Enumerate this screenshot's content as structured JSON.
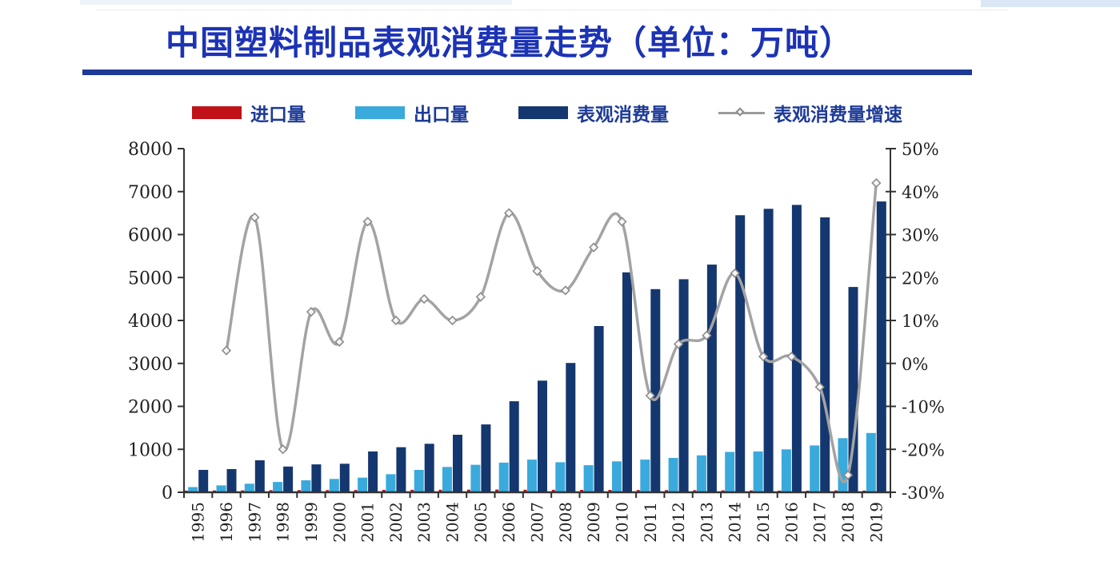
{
  "header": {
    "title": "中国塑料制品表观消费量走势（单位：万吨）",
    "title_color": "#1c33b4",
    "underline_color": "#1d3a96"
  },
  "legend": {
    "text_color": "#1d3a96",
    "items": [
      {
        "label": "进口量",
        "swatch": "bar",
        "color": "#c01218"
      },
      {
        "label": "出口量",
        "swatch": "bar",
        "color": "#3aaadc"
      },
      {
        "label": "表观消费量",
        "swatch": "bar",
        "color": "#15376f"
      },
      {
        "label": "表观消费量增速",
        "swatch": "line",
        "color": "#9c9c9c"
      }
    ]
  },
  "chart_data": {
    "type": "bar",
    "title": "中国塑料制品表观消费量走势（单位：万吨）",
    "xlabel": "",
    "ylabel_left": "万吨",
    "ylabel_right": "%",
    "grid": false,
    "legend_position": "top",
    "categories": [
      "1995",
      "1996",
      "1997",
      "1998",
      "1999",
      "2000",
      "2001",
      "2002",
      "2003",
      "2004",
      "2005",
      "2006",
      "2007",
      "2008",
      "2009",
      "2010",
      "2011",
      "2012",
      "2013",
      "2014",
      "2015",
      "2016",
      "2017",
      "2018",
      "2019"
    ],
    "series": [
      {
        "name": "进口量",
        "type": "bar",
        "axis": "left",
        "color": "#c01218",
        "values": [
          40,
          42,
          45,
          48,
          50,
          50,
          52,
          55,
          58,
          60,
          62,
          63,
          60,
          58,
          55,
          55,
          52,
          50,
          48,
          45,
          42,
          40,
          38,
          42,
          40
        ]
      },
      {
        "name": "出口量",
        "type": "bar",
        "axis": "left",
        "color": "#3aaadc",
        "values": [
          120,
          160,
          200,
          240,
          280,
          310,
          340,
          420,
          520,
          590,
          640,
          690,
          760,
          700,
          630,
          720,
          760,
          800,
          860,
          940,
          950,
          1000,
          1090,
          1260,
          1380
        ]
      },
      {
        "name": "表观消费量",
        "type": "bar",
        "axis": "left",
        "color": "#15376f",
        "values": [
          520,
          540,
          745,
          600,
          650,
          665,
          950,
          1050,
          1130,
          1340,
          1580,
          2120,
          2600,
          3010,
          3870,
          5120,
          4730,
          4960,
          5300,
          6450,
          6600,
          6690,
          6400,
          4780,
          6770
        ]
      },
      {
        "name": "表观消费量增速",
        "type": "line",
        "axis": "right",
        "unit": "%",
        "color": "#a3a3a3",
        "values": [
          null,
          3,
          34,
          -20,
          12,
          5,
          33,
          10,
          15,
          10,
          15.5,
          35,
          21.5,
          17,
          27,
          33,
          -7.5,
          4.5,
          6.5,
          21,
          1.6,
          1.6,
          -5.5,
          -26,
          42
        ]
      }
    ],
    "left_axis": {
      "min": 0,
      "max": 8000,
      "step": 1000,
      "tick_labels": [
        "0",
        "1000",
        "2000",
        "3000",
        "4000",
        "5000",
        "6000",
        "7000",
        "8000"
      ]
    },
    "right_axis": {
      "min": -30,
      "max": 50,
      "step": 10,
      "tick_labels": [
        "-30%",
        "-20%",
        "-10%",
        "0%",
        "10%",
        "20%",
        "30%",
        "40%",
        "50%"
      ]
    }
  },
  "style": {
    "axis_color": "#333333",
    "tick_text_color": "#1f1f1f",
    "line_color": "#a3a3a3",
    "marker_stroke": "#8d8d8d",
    "marker_fill": "#f7f7f7"
  }
}
